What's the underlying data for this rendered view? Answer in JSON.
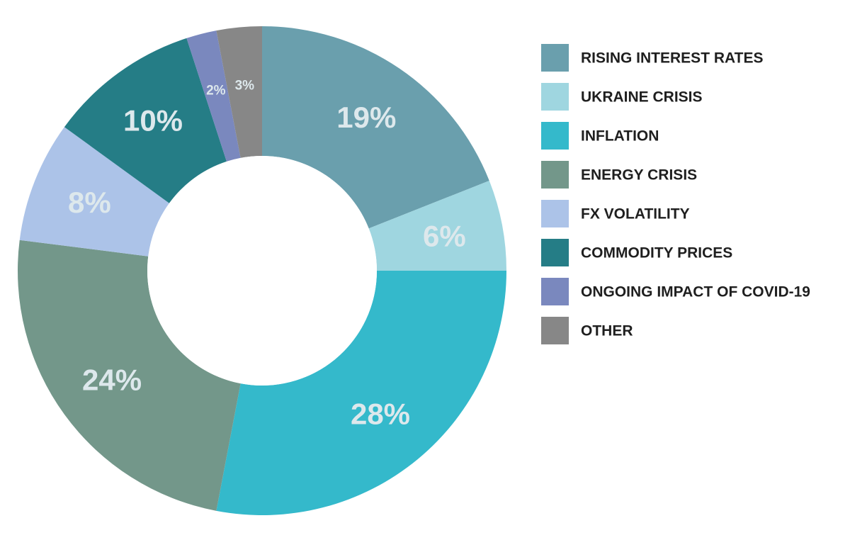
{
  "chart_data": {
    "type": "pie",
    "donut": true,
    "legend_position": "right",
    "slices": [
      {
        "label": "RISING INTEREST RATES",
        "value": 19,
        "value_label": "19%",
        "color": "#6a9fad"
      },
      {
        "label": "UKRAINE CRISIS",
        "value": 6,
        "value_label": "6%",
        "color": "#9fd6e0"
      },
      {
        "label": "INFLATION",
        "value": 28,
        "value_label": "28%",
        "color": "#34b9cb"
      },
      {
        "label": "ENERGY CRISIS",
        "value": 24,
        "value_label": "24%",
        "color": "#73978a"
      },
      {
        "label": "FX VOLATILITY",
        "value": 8,
        "value_label": "8%",
        "color": "#acc3e8"
      },
      {
        "label": "COMMODITY PRICES",
        "value": 10,
        "value_label": "10%",
        "color": "#257d86"
      },
      {
        "label": "ONGOING IMPACT OF COVID-19",
        "value": 2,
        "value_label": "2%",
        "color": "#7a88be"
      },
      {
        "label": "OTHER",
        "value": 3,
        "value_label": "3%",
        "color": "#878787"
      }
    ]
  }
}
